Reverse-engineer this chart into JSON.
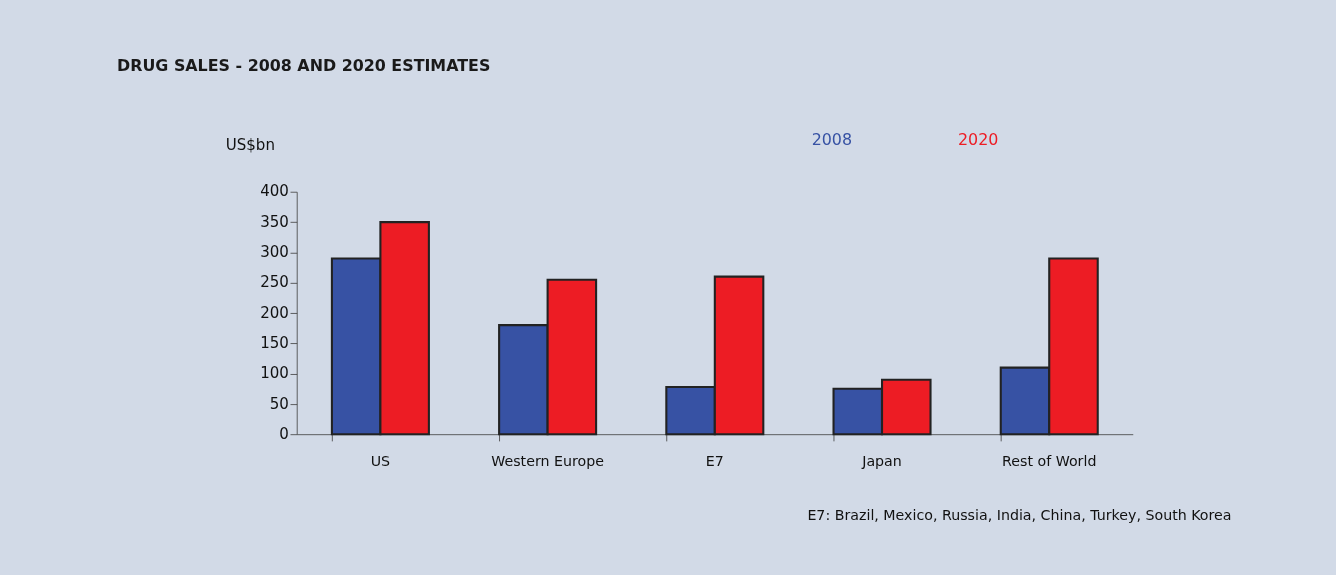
{
  "chart_data": {
    "type": "bar",
    "title": "DRUG SALES - 2008 AND 2020 ESTIMATES",
    "ylabel": "US$bn",
    "categories": [
      "US",
      "Western Europe",
      "E7",
      "Japan",
      "Rest of World"
    ],
    "series": [
      {
        "name": "2008",
        "color": "#3752a4",
        "values": [
          290,
          180,
          78,
          75,
          110
        ]
      },
      {
        "name": "2020",
        "color": "#ed1c24",
        "values": [
          350,
          255,
          260,
          90,
          290
        ]
      }
    ],
    "ylim": [
      0,
      400
    ],
    "yticks": [
      0,
      50,
      100,
      150,
      200,
      250,
      300,
      350,
      400
    ],
    "grid": false,
    "legend": "top right",
    "annotations": [
      "E7:  Brazil, Mexico, Russia, India, China, Turkey, South Korea"
    ]
  }
}
